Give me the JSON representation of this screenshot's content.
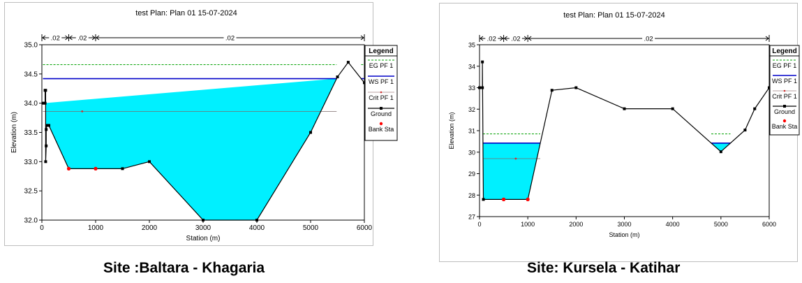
{
  "chart_data": [
    {
      "type": "line",
      "title": "test    Plan: Plan 01    15-07-2024",
      "xlabel": "Station (m)",
      "ylabel": "Elevation (m)",
      "xlim": [
        0,
        6000
      ],
      "ylim": [
        32.0,
        35.0
      ],
      "x_ticks": [
        "0",
        "1000",
        "2000",
        "3000",
        "4000",
        "5000",
        "6000"
      ],
      "y_ticks": [
        "32.0",
        "32.5",
        "33.0",
        "33.5",
        "34.0",
        "34.5",
        "35.0"
      ],
      "x_tick_values": [
        0,
        1000,
        2000,
        3000,
        4000,
        5000,
        6000
      ],
      "y_tick_values": [
        32.0,
        32.5,
        33.0,
        33.5,
        34.0,
        34.5,
        35.0
      ],
      "mannings": {
        "labels": [
          ".02",
          ".02",
          ".02"
        ],
        "breaks": [
          0,
          500,
          1000,
          6000
        ]
      },
      "levels": {
        "eg": 34.66,
        "ws": 34.42,
        "crit": 33.86
      },
      "crit_marker_x": 750,
      "ground": {
        "x": [
          20,
          60,
          60,
          70,
          70,
          80,
          80,
          90,
          130,
          500,
          1000,
          1500,
          2000,
          3000,
          4000,
          5000,
          5500,
          5700,
          6000
        ],
        "y": [
          34.0,
          34.0,
          34.22,
          34.22,
          33.0,
          33.27,
          33.55,
          33.62,
          33.62,
          32.88,
          32.88,
          32.88,
          33.0,
          32.0,
          32.0,
          33.5,
          34.45,
          34.7,
          34.35
        ]
      },
      "bank_stations": {
        "x": [
          500,
          1000
        ],
        "y": [
          32.88,
          32.88
        ]
      },
      "legend": {
        "title": "Legend",
        "entries": [
          "EG PF 1",
          "WS PF 1",
          "Crit PF 1",
          "Ground",
          "Bank Sta"
        ],
        "placement": "right"
      },
      "colors": {
        "water": "#00f0ff",
        "ws": "#0000c8",
        "eg": "#00a000",
        "crit": "#d03030",
        "ground": "#000000",
        "bank": "#ff0000"
      }
    },
    {
      "type": "line",
      "title": "test    Plan: Plan 01    15-07-2024",
      "xlabel": "Station (m)",
      "ylabel": "Elevation (m)",
      "xlim": [
        0,
        6000
      ],
      "ylim": [
        27,
        35
      ],
      "x_ticks": [
        "0",
        "1000",
        "2000",
        "3000",
        "4000",
        "5000",
        "6000"
      ],
      "y_ticks": [
        "27",
        "28",
        "29",
        "30",
        "31",
        "32",
        "33",
        "34",
        "35"
      ],
      "x_tick_values": [
        0,
        1000,
        2000,
        3000,
        4000,
        5000,
        6000
      ],
      "y_tick_values": [
        27,
        28,
        29,
        30,
        31,
        32,
        33,
        34,
        35
      ],
      "mannings": {
        "labels": [
          ".02",
          ".02",
          ".02"
        ],
        "breaks": [
          0,
          500,
          1000,
          6000
        ]
      },
      "levels": {
        "eg": 30.85,
        "ws": 30.42,
        "crit": 29.7
      },
      "crit_marker_x": 750,
      "ground": {
        "x": [
          0,
          60,
          60,
          80,
          500,
          1000,
          1500,
          2000,
          3000,
          4000,
          5000,
          5500,
          5700,
          6000
        ],
        "y": [
          33.0,
          33.0,
          34.2,
          27.8,
          27.8,
          27.8,
          32.88,
          33.0,
          32.02,
          32.02,
          30.02,
          31.03,
          32.02,
          33.0
        ]
      },
      "bank_stations": {
        "x": [
          500,
          1000
        ],
        "y": [
          27.8,
          27.8
        ]
      },
      "legend": {
        "title": "Legend",
        "entries": [
          "EG PF 1",
          "WS PF 1",
          "Crit PF 1",
          "Ground",
          "Bank Sta"
        ],
        "placement": "right"
      },
      "colors": {
        "water": "#00f0ff",
        "ws": "#0000c8",
        "eg": "#00a000",
        "crit": "#d03030",
        "ground": "#000000",
        "bank": "#ff0000"
      }
    }
  ],
  "captions": [
    "Site :Baltara - Khagaria",
    "Site: Kursela - Katihar"
  ]
}
